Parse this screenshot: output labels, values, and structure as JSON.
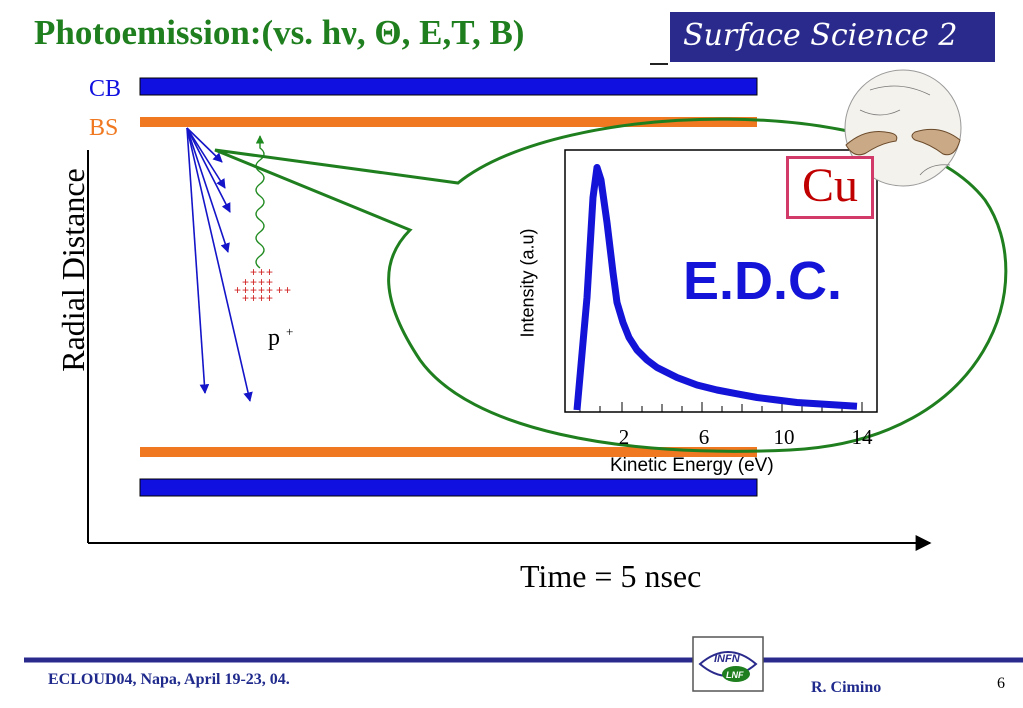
{
  "header": {
    "title": "Photoemission:(vs. hν, Θ, E,T, B)",
    "badge": "Surface Science 2"
  },
  "diagram": {
    "band_top_label": "CB",
    "band_mid_label": "BS",
    "y_axis_label": "Radial Distance",
    "x_axis_label": "Time = 5 nsec",
    "photon_target_label": "p",
    "photon_target_sup": "+",
    "colors": {
      "cb": "#1010e0",
      "bs": "#f07820",
      "ellipse": "#1f7f1f",
      "arrows": "#1414c8",
      "photon": "#1f8a1f",
      "plus": "#d02020"
    }
  },
  "inset": {
    "element_label": "Cu",
    "method_label": "E.D.C.",
    "y_label": "Intensity (a.u)",
    "x_label": "Kinetic Energy (eV)",
    "tick_labels": [
      "2",
      "6",
      "10",
      "14"
    ]
  },
  "chart_data": {
    "type": "line",
    "title": "",
    "xlabel": "Kinetic Energy (eV)",
    "ylabel": "Intensity (a.u)",
    "xticks": [
      2,
      6,
      10,
      14
    ],
    "series": [
      {
        "x": [
          0,
          0.5,
          0.8,
          1.0,
          1.2,
          1.5,
          1.8,
          2.0,
          2.3,
          2.6,
          3.0,
          3.5,
          4,
          5,
          6,
          7,
          8,
          9,
          10,
          11,
          12,
          13,
          14
        ],
        "values": [
          0.0,
          0.45,
          0.85,
          0.97,
          0.92,
          0.75,
          0.55,
          0.43,
          0.35,
          0.29,
          0.24,
          0.2,
          0.17,
          0.13,
          0.1,
          0.08,
          0.065,
          0.05,
          0.04,
          0.03,
          0.025,
          0.02,
          0.015
        ]
      }
    ]
  },
  "footer": {
    "event": "ECLOUD04, Napa, April 19-23, 04.",
    "author": "R. Cimino",
    "page": "6",
    "logo_top": "INFN",
    "logo_bottom": "LNF"
  }
}
